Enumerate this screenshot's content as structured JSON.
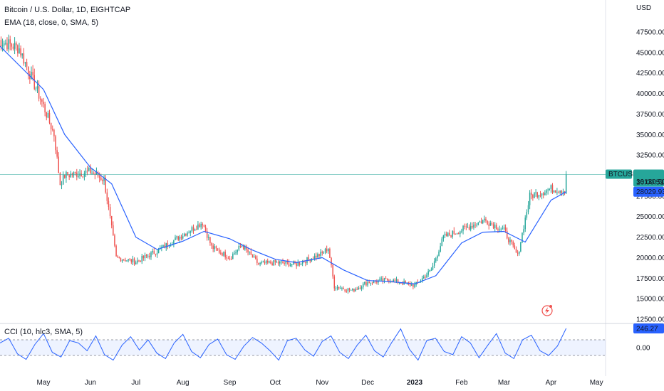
{
  "header": {
    "title": "Bitcoin / U.S. Dollar, 1D, EIGHTCAP",
    "indicator": "EMA (18, close, 0, SMA, 5)",
    "currency": "USD"
  },
  "cci_panel": {
    "legend": "CCI (10, hlc3, SMA, 5)"
  },
  "price_tags": {
    "symbol": "BTCUSD",
    "last_price": "30130.50",
    "countdown": "16:00:51",
    "ema_value": "28029.93",
    "cci_value": "246.27",
    "cci_zero": "0.00"
  },
  "colors": {
    "up": "#26a69a",
    "down": "#ef5350",
    "ema": "#2962ff",
    "cci": "#2962ff",
    "cci_band": "#2962ff",
    "price_line": "#26a69a",
    "ema_tag": "#2962ff",
    "lightning_icon": "#ef5350"
  },
  "chart_data": [
    {
      "type": "line",
      "title": "Bitcoin / U.S. Dollar, 1D, EIGHTCAP",
      "y_axis_ticks": [
        "47500.00",
        "45000.00",
        "42500.00",
        "40000.00",
        "37500.00",
        "35000.00",
        "32500.00",
        "30000.00",
        "27500.00",
        "25000.00",
        "22500.00",
        "20000.00",
        "17500.00",
        "15000.00",
        "12500.00"
      ],
      "ylim": [
        12500,
        48500
      ],
      "x_axis_ticks": [
        "May",
        "Jun",
        "Jul",
        "Aug",
        "Sep",
        "Oct",
        "Nov",
        "Dec",
        "2023",
        "Feb",
        "Mar",
        "Apr",
        "May"
      ],
      "series": [
        {
          "name": "BTCUSD",
          "x": [
            "Apr 1",
            "Apr 15",
            "May 1",
            "May 8",
            "May 12",
            "May 15",
            "Jun 1",
            "Jun 10",
            "Jun 18",
            "Jul 1",
            "Jul 15",
            "Aug 1",
            "Aug 14",
            "Aug 20",
            "Sep 1",
            "Sep 9",
            "Sep 20",
            "Oct 1",
            "Oct 15",
            "Nov 1",
            "Nov 5",
            "Nov 9",
            "Nov 21",
            "Dec 1",
            "Dec 15",
            "Jan 1",
            "Jan 12",
            "Jan 20",
            "Feb 1",
            "Feb 16",
            "Mar 1",
            "Mar 10",
            "Mar 18",
            "Apr 1",
            "Apr 10",
            "Apr 11"
          ],
          "values": [
            46500,
            45500,
            38500,
            35000,
            29000,
            30000,
            30500,
            29500,
            20000,
            19500,
            20800,
            22800,
            24300,
            21300,
            20000,
            21500,
            19200,
            19400,
            19200,
            20500,
            21200,
            16500,
            16000,
            17000,
            17300,
            16600,
            18500,
            22500,
            23400,
            24600,
            23300,
            20200,
            27500,
            28400,
            28200,
            30130.5
          ]
        },
        {
          "name": "EMA (18, close, 0, SMA, 5)",
          "x": [
            "Apr 1",
            "May 1",
            "May 15",
            "Jun 1",
            "Jun 15",
            "Jul 1",
            "Jul 15",
            "Aug 1",
            "Aug 15",
            "Sep 1",
            "Sep 15",
            "Oct 1",
            "Oct 15",
            "Nov 1",
            "Nov 15",
            "Dec 1",
            "Dec 15",
            "Jan 1",
            "Jan 15",
            "Feb 1",
            "Feb 15",
            "Mar 1",
            "Mar 15",
            "Apr 1",
            "Apr 11"
          ],
          "values": [
            46000,
            40500,
            35000,
            31000,
            29000,
            22500,
            21000,
            22000,
            23200,
            22300,
            21000,
            19800,
            19400,
            20000,
            18500,
            17200,
            17100,
            16800,
            17800,
            21800,
            23100,
            23200,
            21900,
            27000,
            28029.93
          ]
        }
      ]
    },
    {
      "type": "line",
      "title": "CCI (10, hlc3, SMA, 5)",
      "y_axis_ticks": [
        "0.00"
      ],
      "bands": [
        100,
        -100
      ],
      "series": [
        {
          "name": "CCI (10, hlc3, SMA, 5)",
          "values": [
            60,
            120,
            -80,
            -150,
            40,
            180,
            -60,
            -120,
            90,
            60,
            -40,
            150,
            -90,
            -160,
            30,
            140,
            -30,
            100,
            -70,
            -140,
            60,
            170,
            -50,
            -130,
            40,
            110,
            -90,
            -150,
            20,
            130,
            60,
            -40,
            -160,
            90,
            120,
            -30,
            -110,
            80,
            150,
            -60,
            -140,
            30,
            160,
            -40,
            -120,
            70,
            240,
            -20,
            -160,
            90,
            120,
            -50,
            -90,
            140,
            60,
            -130,
            30,
            180,
            -70,
            -140,
            100,
            160,
            -40,
            -100,
            20,
            246.27
          ]
        }
      ]
    }
  ]
}
